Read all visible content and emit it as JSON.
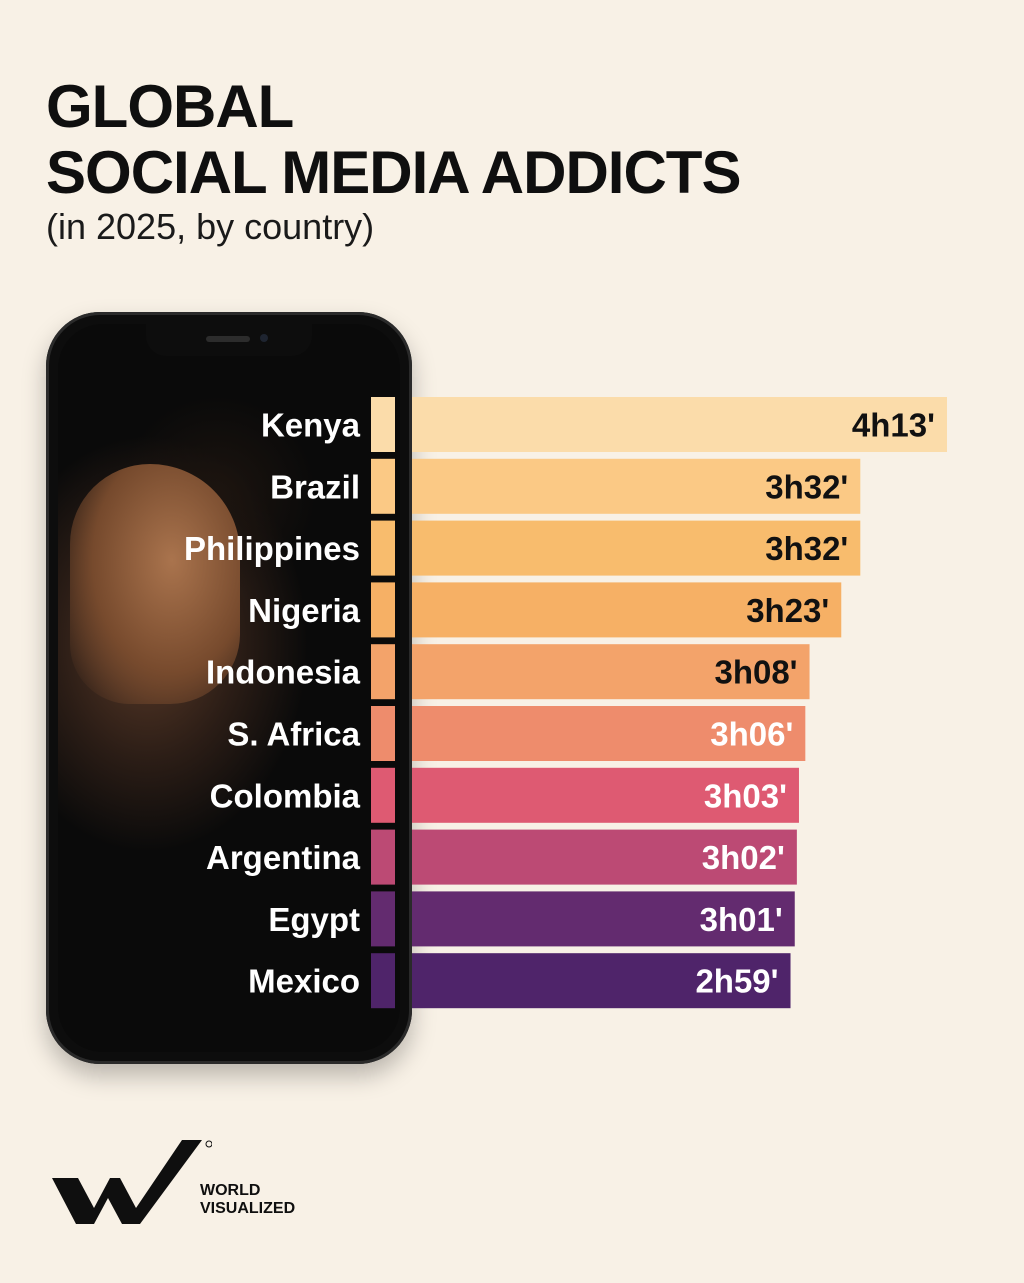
{
  "title": {
    "line1": "GLOBAL",
    "line2": "SOCIAL MEDIA ADDICTS",
    "subtitle": "(in 2025, by country)"
  },
  "brand": {
    "line1": "WORLD",
    "line2": "VISUALIZED",
    "mark": "WV"
  },
  "chart_data": {
    "type": "bar",
    "orientation": "horizontal",
    "title": "GLOBAL SOCIAL MEDIA ADDICTS",
    "subtitle": "(in 2025, by country)",
    "unit": "minutes per day",
    "categories": [
      "Kenya",
      "Brazil",
      "Philippines",
      "Nigeria",
      "Indonesia",
      "S. Africa",
      "Colombia",
      "Argentina",
      "Egypt",
      "Mexico"
    ],
    "values": [
      253,
      212,
      212,
      203,
      188,
      186,
      183,
      182,
      181,
      179
    ],
    "labels": [
      "4h13'",
      "3h32'",
      "3h32'",
      "3h23'",
      "3h08'",
      "3h06'",
      "3h03'",
      "3h02'",
      "3h01'",
      "2h59'"
    ],
    "colors": [
      "#fbdcaa",
      "#fbc985",
      "#f8bc6d",
      "#f6b065",
      "#f3a36a",
      "#ee8c6c",
      "#de5a72",
      "#bc4a74",
      "#632b6f",
      "#4f246a"
    ],
    "label_colors": [
      "#111111",
      "#111111",
      "#111111",
      "#111111",
      "#111111",
      "#ffffff",
      "#ffffff",
      "#ffffff",
      "#ffffff",
      "#ffffff"
    ],
    "grid": false,
    "legend": "none"
  }
}
